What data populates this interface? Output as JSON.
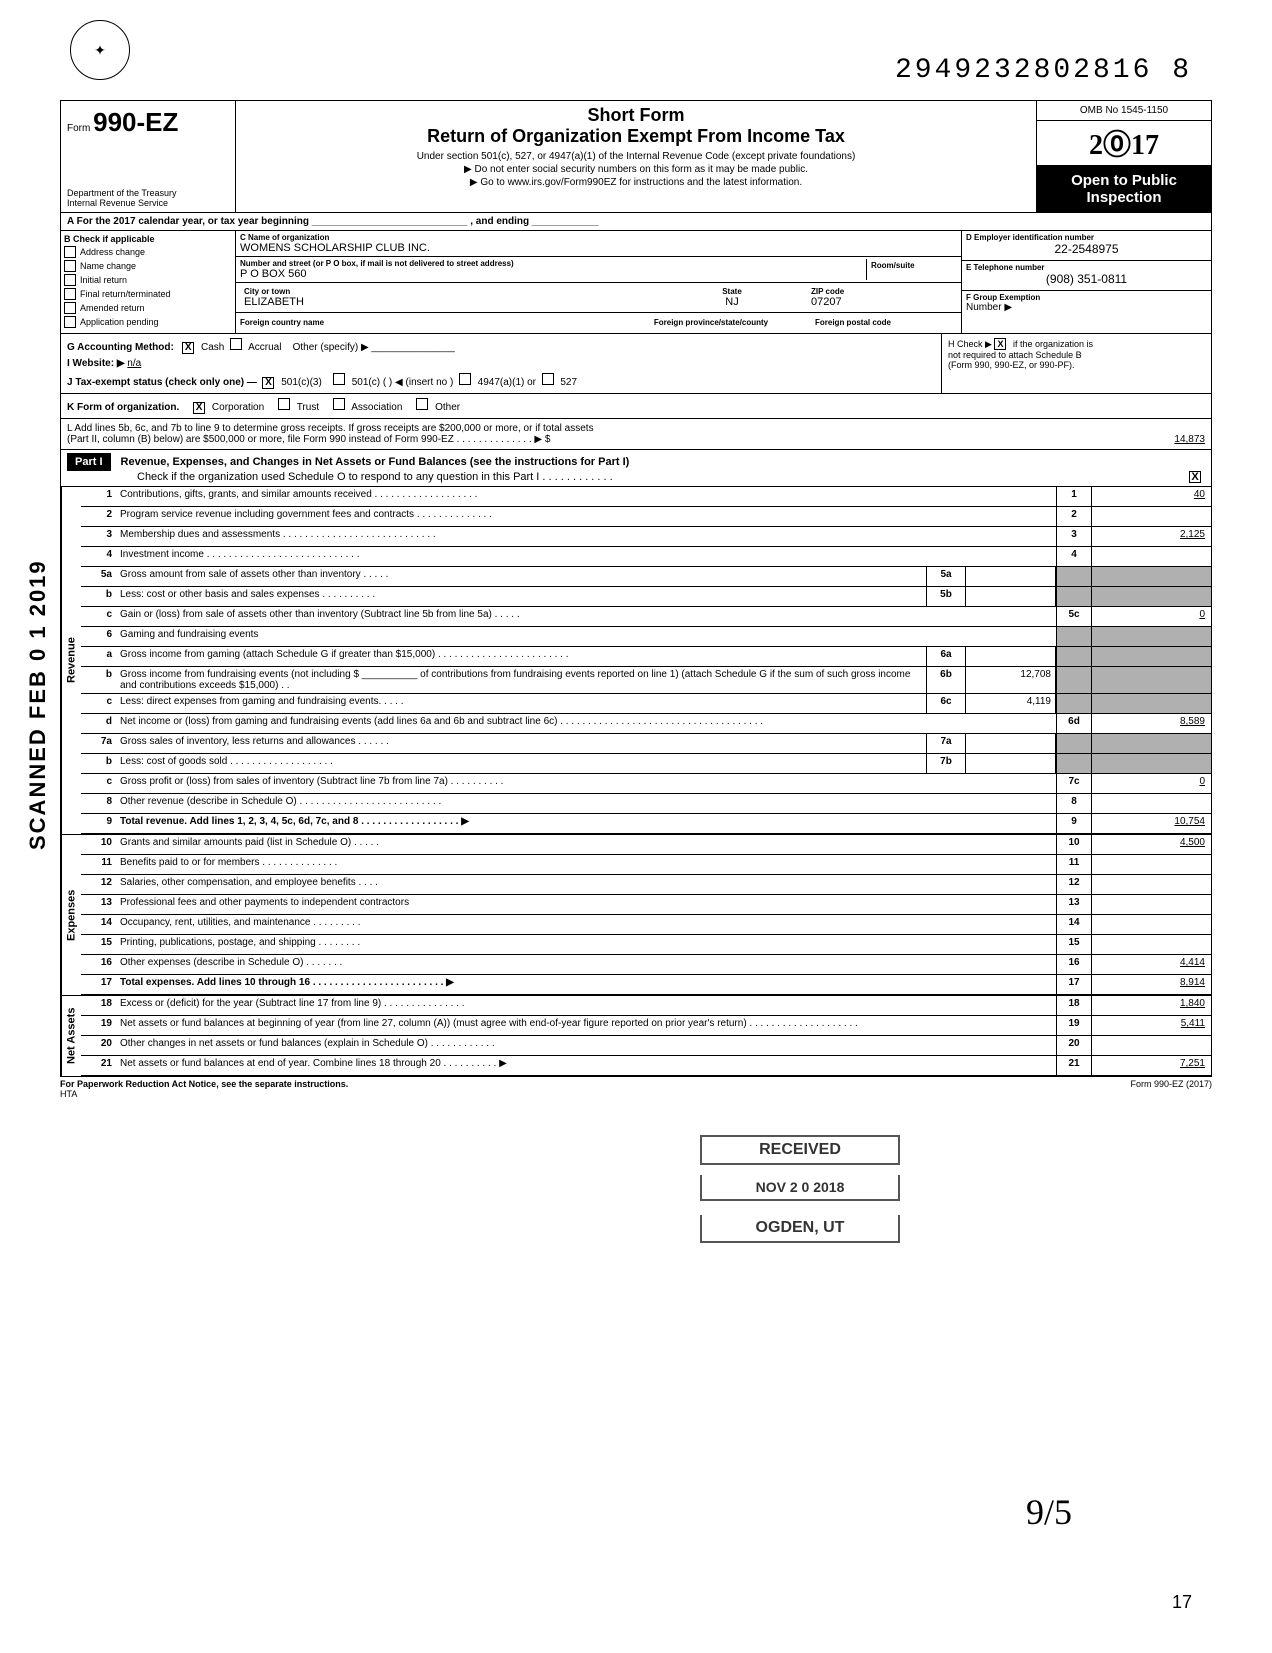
{
  "doc": {
    "number": "2949232802816 8",
    "scan_stamp": "SCANNED FEB 0 1 2019",
    "page_number": "17",
    "signature": "9/5"
  },
  "header": {
    "form_word": "Form",
    "form_number": "990-EZ",
    "dept1": "Department of the Treasury",
    "dept2": "Internal Revenue Service",
    "short": "Short Form",
    "title": "Return of Organization Exempt From Income Tax",
    "sub1": "Under section 501(c), 527, or 4947(a)(1) of the Internal Revenue Code (except private foundations)",
    "sub2": "Do not enter social security numbers on this form as it may be made public.",
    "sub3": "Go to www.irs.gov/Form990EZ for instructions and the latest information.",
    "omb": "OMB No 1545-1150",
    "year": "2017",
    "open": "Open to Public Inspection"
  },
  "row_a": "A   For the 2017 calendar year, or tax year beginning ____________________________ , and ending ____________",
  "section_b": {
    "label": "B   Check if applicable",
    "items": [
      "Address change",
      "Name change",
      "Initial return",
      "Final return/terminated",
      "Amended return",
      "Application pending"
    ]
  },
  "section_c": {
    "name_label": "C  Name of organization",
    "name": "WOMENS SCHOLARSHIP CLUB INC.",
    "street_label": "Number and street (or P O  box, if mail is not delivered to street address)",
    "room_label": "Room/suite",
    "street": "P O  BOX 560",
    "city_label": "City or town",
    "state_label": "State",
    "zip_label": "ZIP code",
    "city": "ELIZABETH",
    "state": "NJ",
    "zip": "07207",
    "foreign_country": "Foreign country name",
    "foreign_prov": "Foreign province/state/county",
    "foreign_postal": "Foreign postal code"
  },
  "section_de": {
    "ein_label": "D  Employer identification number",
    "ein": "22-2548975",
    "phone_label": "E  Telephone number",
    "phone": "(908) 351-0811",
    "group_label": "F  Group Exemption",
    "group2": "Number ▶"
  },
  "section_g": {
    "label": "G   Accounting Method:",
    "cash": "Cash",
    "accrual": "Accrual",
    "other": "Other (specify)  ▶",
    "website_label": "I    Website: ▶",
    "website": "n/a",
    "h_label": "H  Check ▶",
    "h_text1": "if the organization is",
    "h_text2": "not required to attach Schedule B",
    "h_text3": "(Form 990, 990-EZ, or 990-PF).",
    "j_label": "J   Tax-exempt status (check only one) —",
    "j_501c3": "501(c)(3)",
    "j_501c": "501(c) (       ) ◀ (insert no )",
    "j_4947": "4947(a)(1) or",
    "j_527": "527"
  },
  "row_k": {
    "label": "K   Form of organization.",
    "corp": "Corporation",
    "trust": "Trust",
    "assoc": "Association",
    "other": "Other"
  },
  "row_l": {
    "text1": "L   Add lines 5b, 6c, and 7b to line 9 to determine gross receipts. If gross receipts are $200,000 or more, or if total assets",
    "text2": "(Part II, column (B) below) are $500,000 or more, file Form 990 instead of Form 990-EZ . . . . . . . . . . . . . . ▶ $",
    "amount": "14,873"
  },
  "part1": {
    "label": "Part I",
    "title": "Revenue, Expenses, and Changes in Net Assets or Fund Balances (see the instructions for Part I)",
    "check": "Check if the organization used Schedule O to respond to any question in this Part I . . . . . . . . . . . .",
    "checked": "X"
  },
  "sections": {
    "revenue": "Revenue",
    "expenses": "Expenses",
    "netassets": "Net Assets"
  },
  "lines": [
    {
      "n": "1",
      "d": "Contributions, gifts, grants, and similar amounts received . . . . . . . . . . . . . . . . . . .",
      "box": "1",
      "v": "40"
    },
    {
      "n": "2",
      "d": "Program service revenue including government fees and contracts . . . . . . . . . . . . . .",
      "box": "2",
      "v": ""
    },
    {
      "n": "3",
      "d": "Membership dues and assessments . . . . . . . . . . . . . . . . . . . . . . . . . . . .",
      "box": "3",
      "v": "2,125"
    },
    {
      "n": "4",
      "d": "Investment income .  .  .  .  .  .  .  .  .  .                    .  .  .  .  .  .  .  .  .  .  .  .  .  .  .  .  .  .",
      "box": "4",
      "v": ""
    },
    {
      "n": "5a",
      "d": "Gross amount from sale of assets other than inventory . . . . .",
      "mb": "5a",
      "mv": "",
      "shaded": true
    },
    {
      "n": "b",
      "d": "Less: cost or other basis and sales expenses . . . . . . . .       .  .",
      "mb": "5b",
      "mv": "",
      "shaded": true
    },
    {
      "n": "c",
      "d": "Gain or (loss) from sale of assets other than inventory (Subtract line 5b from line 5a) . . . . .",
      "box": "5c",
      "v": "0"
    },
    {
      "n": "6",
      "d": "Gaming and fundraising events",
      "shaded": true
    },
    {
      "n": "a",
      "d": "Gross income from gaming (attach Schedule G if greater than $15,000) . . . . . . . . . . . . . . . . .                  . . . . . . .",
      "mb": "6a",
      "mv": "",
      "shaded": true
    },
    {
      "n": "b",
      "d": "Gross income from fundraising events (not including    $ __________ of contributions from fundraising events reported on line 1) (attach Schedule G if the sum of such gross income and contributions exceeds $15,000) . .",
      "mb": "6b",
      "mv": "12,708",
      "shaded": true
    },
    {
      "n": "c",
      "d": "Less: direct expenses from gaming and fundraising events. . . . .",
      "mb": "6c",
      "mv": "4,119",
      "shaded": true
    },
    {
      "n": "d",
      "d": "Net income or (loss) from gaming and fundraising events (add lines 6a and 6b and subtract line 6c) .  .  .  .  .  .  .  .  .  .  .  .  .  .  .  .  .  .  .  .  .  .  .  .  .  .  .  .          . . . . . . . . .",
      "box": "6d",
      "v": "8,589"
    },
    {
      "n": "7a",
      "d": "Gross sales of inventory, less returns and allowances . . . . . .",
      "mb": "7a",
      "mv": "",
      "shaded": true
    },
    {
      "n": "b",
      "d": "Less: cost of goods sold .  .  .  .  .  .  .  .  .  .  .  .  .  .  .  .  .  .  .",
      "mb": "7b",
      "mv": "",
      "shaded": true
    },
    {
      "n": "c",
      "d": "Gross profit or (loss) from sales of inventory (Subtract line 7b from line 7a) . . . . . . . . . .",
      "box": "7c",
      "v": "0"
    },
    {
      "n": "8",
      "d": "Other revenue (describe in Schedule O) . . . . . . . . . . . . . . . . . . . . . . . . . .",
      "box": "8",
      "v": ""
    },
    {
      "n": "9",
      "d": "Total revenue. Add lines 1, 2, 3, 4, 5c, 6d, 7c, and 8 .   .   .   .   .   .   .   .   .   .   .   .   .   .   .   .   .   . ▶",
      "box": "9",
      "v": "10,754",
      "bold": true
    },
    {
      "n": "10",
      "d": "Grants and similar amounts paid (list in Schedule O) . . . . .",
      "box": "10",
      "v": "4,500"
    },
    {
      "n": "11",
      "d": "Benefits paid to or for members . . . . . . . . . . . . . .",
      "box": "11",
      "v": ""
    },
    {
      "n": "12",
      "d": "Salaries, other compensation, and employee benefits . . . .",
      "box": "12",
      "v": ""
    },
    {
      "n": "13",
      "d": "Professional fees and other payments to independent contractors",
      "box": "13",
      "v": ""
    },
    {
      "n": "14",
      "d": "Occupancy, rent, utilities, and maintenance . . . . . . . . .",
      "box": "14",
      "v": ""
    },
    {
      "n": "15",
      "d": "Printing, publications, postage, and shipping . . . . . . . .",
      "box": "15",
      "v": ""
    },
    {
      "n": "16",
      "d": "Other expenses (describe in Schedule O) .     .   .   .   .   .   .",
      "box": "16",
      "v": "4,414"
    },
    {
      "n": "17",
      "d": "Total expenses. Add lines 10 through 16 .  .  .  .  .  .  .  .  .  .  .  .  .  .  .  .  .  .  .  .  .  .  .  . ▶",
      "box": "17",
      "v": "8,914",
      "bold": true
    },
    {
      "n": "18",
      "d": "Excess or (deficit) for the year (Subtract line 17 from line 9) . . . . . . . . . . . .        .  .  .",
      "box": "18",
      "v": "1,840"
    },
    {
      "n": "19",
      "d": "Net assets or fund balances at beginning of year (from line 27, column (A)) (must agree with end-of-year figure reported on prior year's return) .  .  .  .  .  .  .  .  .  .  .  .  .  .  .  .  .          .  .  .",
      "box": "19",
      "v": "5,411"
    },
    {
      "n": "20",
      "d": "Other changes in net assets or fund balances (explain in Schedule O) . . . . . . . . .     .   .   .",
      "box": "20",
      "v": ""
    },
    {
      "n": "21",
      "d": "Net assets or fund balances at end of year. Combine lines 18 through 20 .  .  .  .  .  .  .  .  .  . ▶",
      "box": "21",
      "v": "7,251"
    }
  ],
  "footer": {
    "left": "For Paperwork Reduction Act Notice, see the separate instructions.",
    "hta": "HTA",
    "right": "Form 990-EZ (2017)"
  },
  "stamps": {
    "received": "RECEIVED",
    "date": "NOV 2 0 2018",
    "ogden": "OGDEN, UT"
  }
}
